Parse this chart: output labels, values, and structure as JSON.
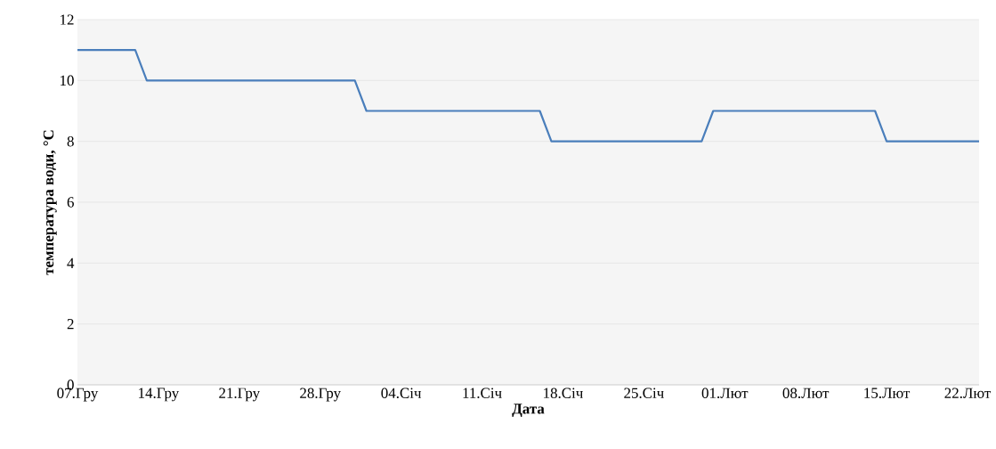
{
  "chart_data": {
    "type": "line",
    "xlabel": "Дата",
    "ylabel": "температура води, °C",
    "categories": [
      "07.Гру",
      null,
      null,
      null,
      null,
      null,
      null,
      "14.Гру",
      null,
      null,
      null,
      null,
      null,
      null,
      "21.Гру",
      null,
      null,
      null,
      null,
      null,
      null,
      "28.Гру",
      null,
      null,
      null,
      null,
      null,
      null,
      "04.Січ",
      null,
      null,
      null,
      null,
      null,
      null,
      "11.Січ",
      null,
      null,
      null,
      null,
      null,
      null,
      "18.Січ",
      null,
      null,
      null,
      null,
      null,
      null,
      "25.Січ",
      null,
      null,
      null,
      null,
      null,
      null,
      "01.Лют",
      null,
      null,
      null,
      null,
      null,
      null,
      "08.Лют",
      null,
      null,
      null,
      null,
      null,
      null,
      "15.Лют",
      null,
      null,
      null,
      null,
      null,
      null,
      "22.Лют",
      null
    ],
    "series": [
      {
        "color": "#4a7ebb",
        "values": [
          11,
          11,
          11,
          11,
          11,
          11,
          10,
          10,
          10,
          10,
          10,
          10,
          10,
          10,
          10,
          10,
          10,
          10,
          10,
          10,
          10,
          10,
          10,
          10,
          10,
          9,
          9,
          9,
          9,
          9,
          9,
          9,
          9,
          9,
          9,
          9,
          9,
          9,
          9,
          9,
          9,
          8,
          8,
          8,
          8,
          8,
          8,
          8,
          8,
          8,
          8,
          8,
          8,
          8,
          8,
          9,
          9,
          9,
          9,
          9,
          9,
          9,
          9,
          9,
          9,
          9,
          9,
          9,
          9,
          9,
          8,
          8,
          8,
          8,
          8,
          8,
          8,
          8,
          8
        ]
      }
    ],
    "ylim": [
      0,
      12
    ],
    "yticks": [
      0,
      2,
      4,
      6,
      8,
      10,
      12
    ],
    "grid": "y",
    "marker": "none",
    "line_style": "solid"
  }
}
